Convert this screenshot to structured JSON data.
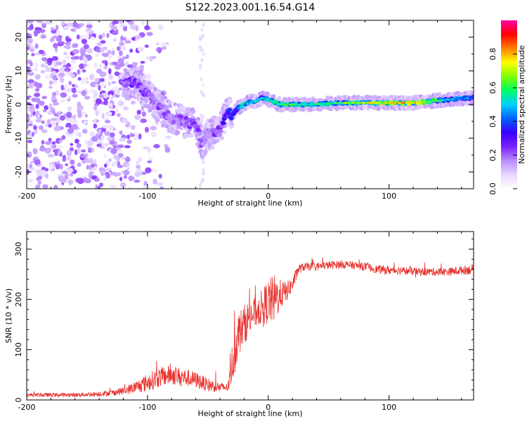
{
  "title": "S122.2023.001.16.54.G14",
  "colors": {
    "snr_line": "#e8312c",
    "axes": "#000000",
    "background": "#ffffff",
    "spectrogram_scale": [
      "#ffffff",
      "#e6d6ff",
      "#b98cff",
      "#7a1fff",
      "#3a00ff",
      "#0060ff",
      "#00d0ff",
      "#00ff60",
      "#80ff00",
      "#ffff00",
      "#ff8000",
      "#ff0000",
      "#ff00a0"
    ]
  },
  "chart_data": [
    {
      "type": "heatmap",
      "xlabel": "Height of straight line (km)",
      "ylabel": "Frequency (Hz)",
      "xlim": [
        -200,
        170
      ],
      "ylim": [
        -25,
        25
      ],
      "x_ticks": [
        -200,
        -100,
        0,
        100
      ],
      "y_ticks": [
        -20,
        -10,
        0,
        10,
        20
      ],
      "x_tick_labels": [
        "-200",
        "-100",
        "0",
        "100"
      ],
      "y_tick_labels": [
        "-20",
        "-10",
        "0",
        "10",
        "20"
      ],
      "colorbar": {
        "label": "Normalized spectral amplitude",
        "range": [
          0,
          1
        ],
        "ticks": [
          0.0,
          0.2,
          0.4,
          0.6,
          0.8
        ],
        "tick_labels": [
          "0.0",
          "0.2",
          "0.4",
          "0.6",
          "0.8"
        ]
      },
      "ridge": {
        "x": [
          -120,
          -110,
          -100,
          -90,
          -80,
          -70,
          -60,
          -55,
          -50,
          -45,
          -40,
          -35,
          -30,
          -25,
          -20,
          -15,
          -10,
          -5,
          0,
          10,
          30,
          60,
          90,
          120,
          150,
          170
        ],
        "frequency": [
          6,
          7,
          3,
          -1,
          -4,
          -5,
          -6,
          -12,
          -9,
          -8,
          -8,
          -2,
          -3,
          -1,
          0,
          1,
          1,
          2,
          1.5,
          0,
          0,
          0.5,
          0.5,
          0.5,
          1.5,
          2
        ],
        "amplitude": [
          0.25,
          0.3,
          0.25,
          0.25,
          0.2,
          0.25,
          0.25,
          0.25,
          0.2,
          0.25,
          0.3,
          0.35,
          0.4,
          0.5,
          0.6,
          0.5,
          0.55,
          0.5,
          0.55,
          0.6,
          0.55,
          0.6,
          0.75,
          0.8,
          0.5,
          0.45
        ]
      },
      "noise_region_x": [
        -200,
        -120
      ],
      "noise_level": 0.12
    },
    {
      "type": "line",
      "xlabel": "Height of straight line (km)",
      "ylabel": "SNR (10 * v/v)",
      "xlim": [
        -200,
        170
      ],
      "ylim": [
        0,
        335
      ],
      "x_ticks": [
        -200,
        -100,
        0,
        100
      ],
      "y_ticks": [
        0,
        100,
        200,
        300
      ],
      "x_tick_labels": [
        "-200",
        "-100",
        "0",
        "100"
      ],
      "y_tick_labels": [
        "0",
        "100",
        "200",
        "300"
      ],
      "series": [
        {
          "x": [
            -200,
            -180,
            -160,
            -140,
            -130,
            -120,
            -110,
            -100,
            -90,
            -80,
            -70,
            -60,
            -50,
            -40,
            -33,
            -30,
            -25,
            -20,
            -15,
            -10,
            -5,
            0,
            5,
            10,
            15,
            20,
            25,
            30,
            40,
            50,
            60,
            70,
            80,
            90,
            100,
            110,
            120,
            130,
            140,
            150,
            160,
            170
          ],
          "values": [
            10,
            10,
            10,
            12,
            14,
            18,
            25,
            35,
            45,
            50,
            45,
            40,
            30,
            25,
            25,
            70,
            130,
            150,
            165,
            175,
            185,
            195,
            200,
            210,
            215,
            230,
            260,
            265,
            265,
            268,
            270,
            268,
            265,
            260,
            258,
            258,
            255,
            255,
            255,
            255,
            258,
            260
          ],
          "noise": [
            4,
            4,
            4,
            5,
            6,
            8,
            12,
            18,
            20,
            20,
            18,
            16,
            14,
            10,
            8,
            40,
            45,
            40,
            35,
            30,
            35,
            45,
            50,
            30,
            20,
            15,
            10,
            8,
            8,
            8,
            8,
            8,
            8,
            8,
            9,
            8,
            8,
            8,
            8,
            8,
            9,
            10
          ]
        }
      ]
    }
  ]
}
